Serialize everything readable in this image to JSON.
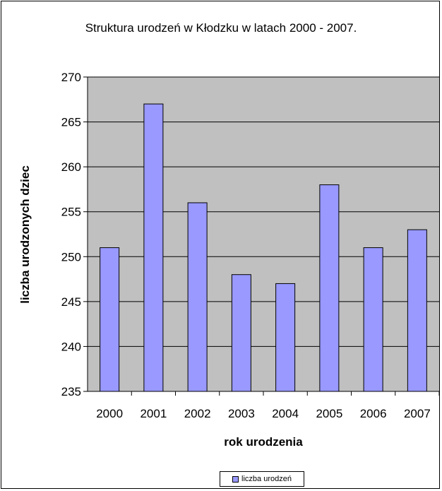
{
  "chart_data": {
    "type": "bar",
    "title": "Struktura urodzeń w  Kłodzku w  latach 2000 - 2007.",
    "xlabel": "rok urodzenia",
    "ylabel": "liczba urodzonych dziec",
    "categories": [
      "2000",
      "2001",
      "2002",
      "2003",
      "2004",
      "2005",
      "2006",
      "2007"
    ],
    "series": [
      {
        "name": "liczba urodzeń",
        "values": [
          251,
          267,
          256,
          248,
          247,
          258,
          251,
          253
        ]
      }
    ],
    "ylim": [
      235,
      270
    ],
    "yticks": [
      235,
      240,
      245,
      250,
      255,
      260,
      265,
      270
    ],
    "grid": true,
    "legend": "bottom",
    "colors": {
      "bar": "#9999ff",
      "plot_background": "#c0c0c0",
      "border": "#000000"
    }
  }
}
